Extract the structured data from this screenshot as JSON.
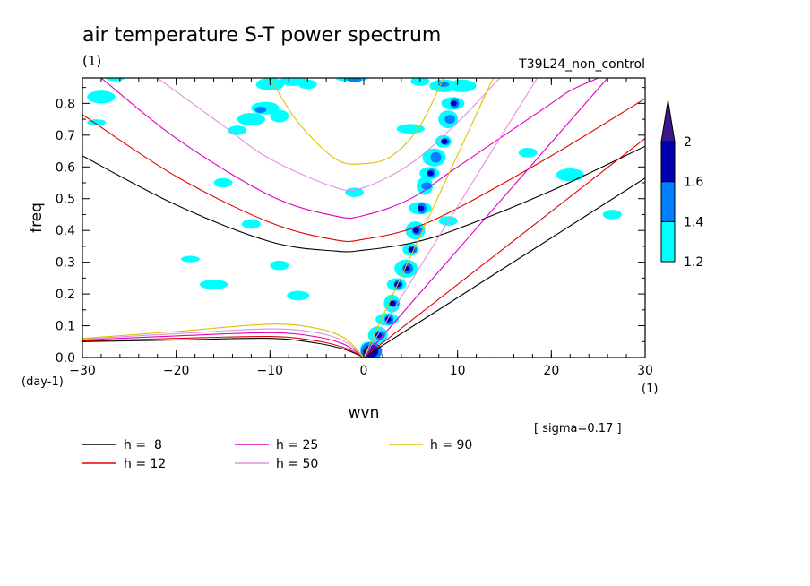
{
  "chart_data": {
    "type": "heatmap",
    "title": "air temperature S-T power spectrum",
    "units_left": "(1)",
    "run_label": "T39L24_non_control",
    "xlabel": "wvn",
    "ylabel": "freq",
    "y_unit_label": "(day-1)",
    "x_unit_label": "(1)",
    "sigma_note": "[ sigma=0.17 ]",
    "xlim": [
      -30,
      30
    ],
    "ylim": [
      0,
      0.88
    ],
    "xticks": [
      {
        "value": -30,
        "label": "-30"
      },
      {
        "value": -20,
        "label": "-20"
      },
      {
        "value": -10,
        "label": "-10"
      },
      {
        "value": 0,
        "label": "0"
      },
      {
        "value": 10,
        "label": "10"
      },
      {
        "value": 20,
        "label": "20"
      },
      {
        "value": 30,
        "label": "30"
      }
    ],
    "yticks": [
      {
        "value": 0,
        "label": "0.0"
      },
      {
        "value": 0.1,
        "label": "0.1"
      },
      {
        "value": 0.2,
        "label": "0.2"
      },
      {
        "value": 0.3,
        "label": "0.3"
      },
      {
        "value": 0.4,
        "label": "0.4"
      },
      {
        "value": 0.5,
        "label": "0.5"
      },
      {
        "value": 0.6,
        "label": "0.6"
      },
      {
        "value": 0.7,
        "label": "0.7"
      },
      {
        "value": 0.8,
        "label": "0.8"
      }
    ],
    "colorbar": {
      "levels": [
        {
          "value": 1.2,
          "label": "1.2"
        },
        {
          "value": 1.4,
          "label": "1.4"
        },
        {
          "value": 1.6,
          "label": "1.6"
        },
        {
          "value": 2,
          "label": "2"
        }
      ],
      "colors": [
        "#00ffff",
        "#0080ff",
        "#0000b0",
        "#3a1a8a"
      ]
    },
    "series": [
      {
        "name": "h =  8",
        "color": "#000000",
        "curves": [
          {
            "kind": "kelvin",
            "points": [
              [
                0,
                0
              ],
              [
                30,
                0.565
              ]
            ]
          },
          {
            "kind": "rossby",
            "points": [
              [
                -30,
                0.05
              ],
              [
                -20,
                0.055
              ],
              [
                -10,
                0.06
              ],
              [
                -5,
                0.045
              ],
              [
                -2,
                0.025
              ],
              [
                0,
                0
              ]
            ]
          },
          {
            "kind": "inertia-gravity",
            "points": [
              [
                -30,
                0.635
              ],
              [
                -20,
                0.48
              ],
              [
                -10,
                0.365
              ],
              [
                -3,
                0.335
              ],
              [
                0,
                0.338
              ],
              [
                5,
                0.36
              ],
              [
                10,
                0.405
              ],
              [
                20,
                0.525
              ],
              [
                30,
                0.665
              ]
            ]
          }
        ]
      },
      {
        "name": "h = 12",
        "color": "#e00000",
        "curves": [
          {
            "kind": "kelvin",
            "points": [
              [
                0,
                0
              ],
              [
                30,
                0.69
              ]
            ]
          },
          {
            "kind": "rossby",
            "points": [
              [
                -30,
                0.052
              ],
              [
                -20,
                0.06
              ],
              [
                -10,
                0.066
              ],
              [
                -5,
                0.052
              ],
              [
                -2,
                0.03
              ],
              [
                0,
                0
              ]
            ]
          },
          {
            "kind": "inertia-gravity",
            "points": [
              [
                -30,
                0.765
              ],
              [
                -20,
                0.57
              ],
              [
                -10,
                0.425
              ],
              [
                -3,
                0.37
              ],
              [
                0,
                0.372
              ],
              [
                5,
                0.405
              ],
              [
                10,
                0.47
              ],
              [
                20,
                0.635
              ],
              [
                30,
                0.815
              ]
            ]
          }
        ]
      },
      {
        "name": "h = 25",
        "color": "#e000c0",
        "curves": [
          {
            "kind": "kelvin",
            "points": [
              [
                0,
                0
              ],
              [
                26,
                0.88
              ]
            ]
          },
          {
            "kind": "rossby",
            "points": [
              [
                -30,
                0.055
              ],
              [
                -20,
                0.068
              ],
              [
                -10,
                0.078
              ],
              [
                -5,
                0.065
              ],
              [
                -2,
                0.04
              ],
              [
                0,
                0
              ]
            ]
          },
          {
            "kind": "inertia-gravity",
            "points": [
              [
                -28,
                0.88
              ],
              [
                -20,
                0.69
              ],
              [
                -10,
                0.51
              ],
              [
                -3,
                0.445
              ],
              [
                0,
                0.447
              ],
              [
                5,
                0.5
              ],
              [
                10,
                0.6
              ],
              [
                20,
                0.8
              ],
              [
                22,
                0.84
              ],
              [
                25,
                0.88
              ]
            ]
          }
        ]
      },
      {
        "name": "h = 50",
        "color": "#e090e0",
        "curves": [
          {
            "kind": "kelvin",
            "points": [
              [
                0,
                0
              ],
              [
                18.5,
                0.88
              ]
            ]
          },
          {
            "kind": "rossby",
            "points": [
              [
                -30,
                0.058
              ],
              [
                -20,
                0.075
              ],
              [
                -10,
                0.09
              ],
              [
                -5,
                0.078
              ],
              [
                -2,
                0.05
              ],
              [
                0,
                0
              ]
            ]
          },
          {
            "kind": "inertia-gravity",
            "points": [
              [
                -22,
                0.88
              ],
              [
                -15,
                0.73
              ],
              [
                -10,
                0.625
              ],
              [
                -3,
                0.535
              ],
              [
                0,
                0.535
              ],
              [
                5,
                0.61
              ],
              [
                10,
                0.74
              ],
              [
                14.5,
                0.88
              ]
            ]
          }
        ]
      },
      {
        "name": "h = 90",
        "color": "#e0c000",
        "curves": [
          {
            "kind": "kelvin",
            "points": [
              [
                0,
                0
              ],
              [
                13.8,
                0.88
              ]
            ]
          },
          {
            "kind": "rossby",
            "points": [
              [
                -30,
                0.06
              ],
              [
                -20,
                0.082
              ],
              [
                -10,
                0.105
              ],
              [
                -5,
                0.092
              ],
              [
                -2,
                0.06
              ],
              [
                0,
                0
              ]
            ]
          },
          {
            "kind": "inertia-gravity",
            "points": [
              [
                -10,
                0.88
              ],
              [
                -7,
                0.74
              ],
              [
                -3,
                0.625
              ],
              [
                0,
                0.61
              ],
              [
                3,
                0.635
              ],
              [
                6,
                0.73
              ],
              [
                8.5,
                0.88
              ]
            ]
          }
        ]
      }
    ],
    "contours": [
      {
        "level": 1.2,
        "blobs": [
          [
            -28,
            0.82,
            1.5,
            0.02
          ],
          [
            -26.5,
            0.88,
            1,
            0.01
          ],
          [
            -10,
            0.86,
            1.5,
            0.02
          ],
          [
            -7.5,
            0.87,
            1.5,
            0.015
          ],
          [
            -6,
            0.86,
            1,
            0.015
          ],
          [
            -2,
            0.88,
            1,
            0.01
          ],
          [
            6,
            0.87,
            1,
            0.015
          ],
          [
            8.5,
            0.855,
            1.5,
            0.02
          ],
          [
            10.5,
            0.855,
            1.5,
            0.02
          ],
          [
            -12,
            0.75,
            1.5,
            0.02
          ],
          [
            -10.5,
            0.785,
            1.5,
            0.02
          ],
          [
            -9,
            0.76,
            1,
            0.02
          ],
          [
            -28.5,
            0.74,
            1,
            0.01
          ],
          [
            -15,
            0.55,
            1,
            0.015
          ],
          [
            -12,
            0.42,
            1,
            0.015
          ],
          [
            -9,
            0.29,
            1,
            0.015
          ],
          [
            -16,
            0.23,
            1.5,
            0.015
          ],
          [
            -18.5,
            0.31,
            1,
            0.01
          ],
          [
            -1,
            0.52,
            1,
            0.015
          ],
          [
            5,
            0.72,
            1.5,
            0.015
          ],
          [
            17.5,
            0.645,
            1,
            0.015
          ],
          [
            22,
            0.575,
            1.5,
            0.02
          ],
          [
            26.5,
            0.45,
            1,
            0.015
          ],
          [
            -7,
            0.195,
            1.2,
            0.015
          ],
          [
            9,
            0.43,
            1,
            0.015
          ],
          [
            -13.5,
            0.715,
            1,
            0.015
          ],
          [
            -1,
            0.88,
            1.5,
            0.01
          ]
        ]
      },
      {
        "level": 1.4,
        "blobs": [
          [
            -1,
            0.875,
            0.8,
            0.008
          ],
          [
            -11,
            0.78,
            0.6,
            0.01
          ],
          [
            8.5,
            0.86,
            0.6,
            0.008
          ]
        ]
      },
      {
        "level": 1.6,
        "blobs": []
      },
      {
        "level": 2,
        "blobs": []
      },
      {
        "level": 1.2,
        "note": "dense band near Kelvin line",
        "band": [
          [
            0.5,
            0.03
          ],
          [
            1.5,
            0.07
          ],
          [
            2.5,
            0.12
          ],
          [
            3,
            0.17
          ],
          [
            3.5,
            0.23
          ],
          [
            4.5,
            0.28
          ],
          [
            5,
            0.34
          ],
          [
            5.5,
            0.4
          ],
          [
            6,
            0.47
          ],
          [
            6.5,
            0.54
          ],
          [
            7,
            0.58
          ],
          [
            7.5,
            0.63
          ],
          [
            8.5,
            0.68
          ],
          [
            9,
            0.75
          ],
          [
            9.5,
            0.8
          ]
        ]
      }
    ]
  }
}
